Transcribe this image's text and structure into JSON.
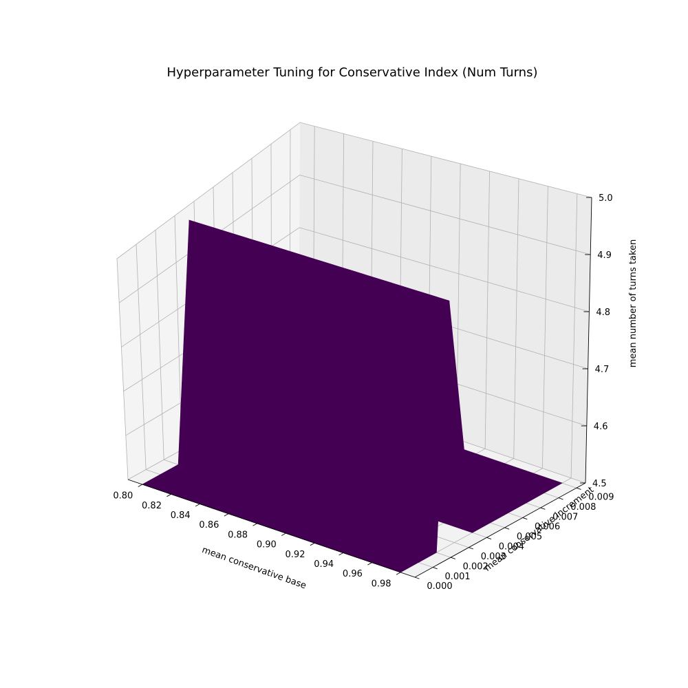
{
  "chart_data": {
    "type": "surface3d",
    "title": "Hyperparameter Tuning for Conservative Index (Num Turns)",
    "xlabel": "mean conservative base",
    "ylabel": "mean conservative increment",
    "zlabel": "mean number of turns taken",
    "x_ticks": [
      "0.80",
      "0.82",
      "0.84",
      "0.86",
      "0.88",
      "0.90",
      "0.92",
      "0.94",
      "0.96",
      "0.98"
    ],
    "y_ticks": [
      "0.000",
      "0.001",
      "0.002",
      "0.003",
      "0.004",
      "0.005",
      "0.006",
      "0.007",
      "0.008",
      "0.009"
    ],
    "z_ticks": [
      "4.5",
      "4.6",
      "4.7",
      "4.8",
      "4.9",
      "5.0"
    ],
    "xlim": [
      0.79,
      0.99
    ],
    "ylim": [
      0.0,
      0.0095
    ],
    "zlim": [
      4.5,
      5.0
    ],
    "grid": true,
    "colormap": "viridis",
    "colors": {
      "low": "#440154",
      "high": "#fde725",
      "pane": "#f2f2f2",
      "grid": "#b0b0b0"
    },
    "x": [
      0.8,
      0.82,
      0.84,
      0.86,
      0.88,
      0.9,
      0.92,
      0.94,
      0.96,
      0.98
    ],
    "y": [
      0.0,
      0.001,
      0.002,
      0.003,
      0.004,
      0.005,
      0.006,
      0.007,
      0.008,
      0.009
    ],
    "z_description_rows_by_y": "z value is 5.0 where y = 0.003, otherwise 4.5",
    "z": [
      [
        4.5,
        4.5,
        4.5,
        4.5,
        4.5,
        4.5,
        4.5,
        4.5,
        4.5,
        4.5
      ],
      [
        4.5,
        4.5,
        4.5,
        4.5,
        4.5,
        4.5,
        4.5,
        4.5,
        4.5,
        4.5
      ],
      [
        4.5,
        4.5,
        4.5,
        4.5,
        4.5,
        4.5,
        4.5,
        4.5,
        4.5,
        4.5
      ],
      [
        5.0,
        5.0,
        5.0,
        5.0,
        5.0,
        5.0,
        5.0,
        5.0,
        5.0,
        5.0
      ],
      [
        4.5,
        4.5,
        4.5,
        4.5,
        4.5,
        4.5,
        4.5,
        4.5,
        4.5,
        4.5
      ],
      [
        4.5,
        4.5,
        4.5,
        4.5,
        4.5,
        4.5,
        4.5,
        4.5,
        4.5,
        4.5
      ],
      [
        4.5,
        4.5,
        4.5,
        4.5,
        4.5,
        4.5,
        4.5,
        4.5,
        4.5,
        4.5
      ],
      [
        4.5,
        4.5,
        4.5,
        4.5,
        4.5,
        4.5,
        4.5,
        4.5,
        4.5,
        4.5
      ],
      [
        4.5,
        4.5,
        4.5,
        4.5,
        4.5,
        4.5,
        4.5,
        4.5,
        4.5,
        4.5
      ],
      [
        4.5,
        4.5,
        4.5,
        4.5,
        4.5,
        4.5,
        4.5,
        4.5,
        4.5,
        4.5
      ]
    ]
  }
}
